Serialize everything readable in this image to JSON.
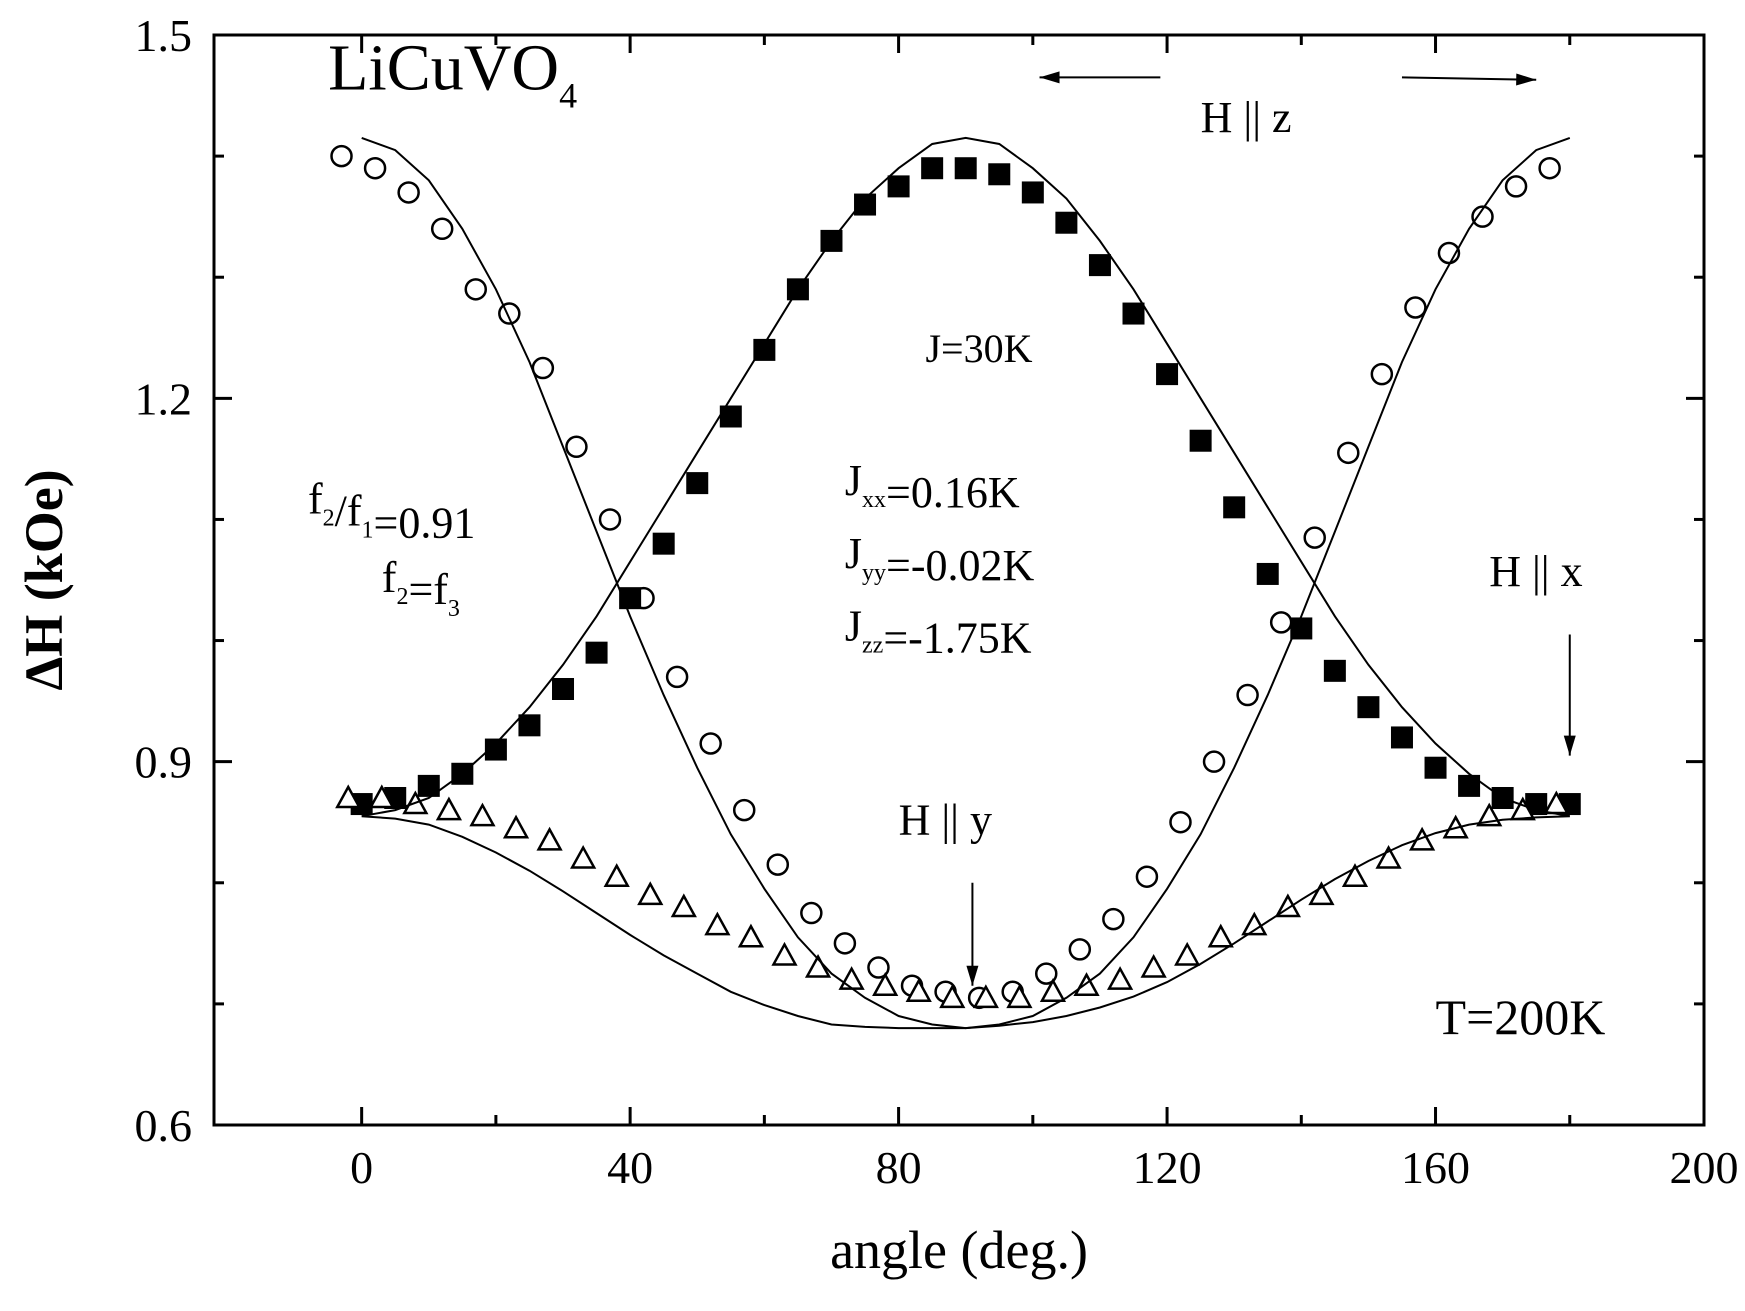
{
  "chart_data": {
    "type": "scatter",
    "title": "",
    "xlabel": "angle (deg.)",
    "ylabel": "ΔH (kOe)",
    "xlim": [
      -22,
      200
    ],
    "ylim": [
      0.6,
      1.5
    ],
    "x_ticks": [
      0,
      40,
      80,
      120,
      160,
      200
    ],
    "x_tick_labels": [
      "0",
      "40",
      "80",
      "120",
      "160",
      "200"
    ],
    "x_minor_ticks": [
      20,
      60,
      100,
      140,
      180
    ],
    "y_ticks": [
      0.6,
      0.9,
      1.2,
      1.5
    ],
    "y_tick_labels": [
      "0.6",
      "0.9",
      "1.2",
      "1.5"
    ],
    "y_minor_ticks": [
      0.7,
      0.8,
      1.0,
      1.1,
      1.3,
      1.4
    ],
    "grid": false,
    "legend": "none",
    "series": [
      {
        "marker": "circle-open",
        "x": [
          -3,
          2,
          7,
          12,
          17,
          22,
          27,
          32,
          37,
          42,
          47,
          52,
          57,
          62,
          67,
          72,
          77,
          82,
          87,
          92,
          97,
          102,
          107,
          112,
          117,
          122,
          127,
          132,
          137,
          142,
          147,
          152,
          157,
          162,
          167,
          172,
          177
        ],
        "y": [
          1.4,
          1.39,
          1.37,
          1.34,
          1.29,
          1.27,
          1.225,
          1.16,
          1.1,
          1.035,
          0.97,
          0.915,
          0.86,
          0.815,
          0.775,
          0.75,
          0.73,
          0.715,
          0.71,
          0.705,
          0.71,
          0.725,
          0.745,
          0.77,
          0.805,
          0.85,
          0.9,
          0.955,
          1.015,
          1.085,
          1.155,
          1.22,
          1.275,
          1.32,
          1.35,
          1.375,
          1.39
        ]
      },
      {
        "marker": "square-filled",
        "x": [
          0,
          5,
          10,
          15,
          20,
          25,
          30,
          35,
          40,
          45,
          50,
          55,
          60,
          65,
          70,
          75,
          80,
          85,
          90,
          95,
          100,
          105,
          110,
          115,
          120,
          125,
          130,
          135,
          140,
          145,
          150,
          155,
          160,
          165,
          170,
          175,
          180
        ],
        "y": [
          0.865,
          0.87,
          0.88,
          0.89,
          0.91,
          0.93,
          0.96,
          0.99,
          1.035,
          1.08,
          1.13,
          1.185,
          1.24,
          1.29,
          1.33,
          1.36,
          1.375,
          1.39,
          1.39,
          1.385,
          1.37,
          1.345,
          1.31,
          1.27,
          1.22,
          1.165,
          1.11,
          1.055,
          1.01,
          0.975,
          0.945,
          0.92,
          0.895,
          0.88,
          0.87,
          0.865,
          0.865
        ]
      },
      {
        "marker": "triangle-open",
        "x": [
          -2,
          3,
          8,
          13,
          18,
          23,
          28,
          33,
          38,
          43,
          48,
          53,
          58,
          63,
          68,
          73,
          78,
          83,
          88,
          93,
          98,
          103,
          108,
          113,
          118,
          123,
          128,
          133,
          138,
          143,
          148,
          153,
          158,
          163,
          168,
          173,
          178
        ],
        "y": [
          0.87,
          0.87,
          0.865,
          0.86,
          0.855,
          0.845,
          0.835,
          0.82,
          0.805,
          0.79,
          0.78,
          0.765,
          0.755,
          0.74,
          0.73,
          0.72,
          0.715,
          0.71,
          0.705,
          0.705,
          0.705,
          0.71,
          0.715,
          0.72,
          0.73,
          0.74,
          0.755,
          0.765,
          0.78,
          0.79,
          0.805,
          0.82,
          0.835,
          0.845,
          0.855,
          0.86,
          0.865
        ]
      },
      {
        "marker": "line",
        "x": [
          0,
          5,
          10,
          15,
          20,
          25,
          30,
          35,
          40,
          45,
          50,
          55,
          60,
          65,
          70,
          75,
          80,
          85,
          90,
          95,
          100,
          105,
          110,
          115,
          120,
          125,
          130,
          135,
          140,
          145,
          150,
          155,
          160,
          165,
          170,
          175,
          180
        ],
        "y": [
          0.855,
          0.86,
          0.87,
          0.89,
          0.915,
          0.945,
          0.98,
          1.02,
          1.065,
          1.11,
          1.155,
          1.2,
          1.245,
          1.29,
          1.33,
          1.365,
          1.39,
          1.41,
          1.415,
          1.41,
          1.39,
          1.365,
          1.33,
          1.29,
          1.245,
          1.2,
          1.155,
          1.11,
          1.065,
          1.02,
          0.98,
          0.945,
          0.915,
          0.89,
          0.87,
          0.86,
          0.855
        ]
      },
      {
        "marker": "line",
        "x": [
          0,
          5,
          10,
          15,
          20,
          25,
          30,
          35,
          40,
          45,
          50,
          55,
          60,
          65,
          70,
          75,
          80,
          85,
          90,
          95,
          100,
          105,
          110,
          115,
          120,
          125,
          130,
          135,
          140,
          145,
          150,
          155,
          160,
          165,
          170,
          175,
          180
        ],
        "y": [
          1.415,
          1.405,
          1.38,
          1.34,
          1.29,
          1.23,
          1.16,
          1.09,
          1.02,
          0.955,
          0.895,
          0.84,
          0.795,
          0.755,
          0.725,
          0.705,
          0.69,
          0.683,
          0.68,
          0.683,
          0.69,
          0.705,
          0.725,
          0.755,
          0.795,
          0.84,
          0.895,
          0.955,
          1.02,
          1.09,
          1.16,
          1.23,
          1.29,
          1.34,
          1.38,
          1.405,
          1.415
        ]
      },
      {
        "marker": "line",
        "x": [
          0,
          5,
          10,
          15,
          20,
          25,
          30,
          35,
          40,
          45,
          50,
          55,
          60,
          65,
          70,
          75,
          80,
          85,
          90,
          95,
          100,
          105,
          110,
          115,
          120,
          125,
          130,
          135,
          140,
          145,
          150,
          155,
          160,
          165,
          170,
          175,
          180
        ],
        "y": [
          0.855,
          0.853,
          0.848,
          0.838,
          0.825,
          0.81,
          0.793,
          0.775,
          0.757,
          0.74,
          0.725,
          0.71,
          0.699,
          0.69,
          0.683,
          0.681,
          0.68,
          0.68,
          0.68,
          0.682,
          0.685,
          0.69,
          0.697,
          0.706,
          0.718,
          0.733,
          0.75,
          0.768,
          0.786,
          0.803,
          0.818,
          0.831,
          0.841,
          0.848,
          0.852,
          0.854,
          0.855
        ]
      }
    ],
    "annotations": [
      {
        "text": "LiCuVO",
        "sub": "4",
        "x": -5,
        "y": 1.455
      },
      {
        "text": "H || z",
        "x": 125,
        "y": 1.42
      },
      {
        "text": "J=30K",
        "x": 84,
        "y": 1.23
      },
      {
        "text": "f",
        "sub": "2",
        "text2": "/f",
        "sub2": "1",
        "text3": "=0.91",
        "x": -8,
        "y": 1.105
      },
      {
        "text": "f",
        "sub": "2",
        "text2": "=f",
        "sub2": "3",
        "x": 3,
        "y": 1.04
      },
      {
        "text": "J",
        "sub": "xx",
        "text2": "=0.16K",
        "x": 72,
        "y": 1.12
      },
      {
        "text": "J",
        "sub": "yy",
        "text2": "=-0.02K",
        "x": 72,
        "y": 1.06
      },
      {
        "text": "J",
        "sub": "zz",
        "text2": "=-1.75K",
        "x": 72,
        "y": 1.0
      },
      {
        "text": "H || x",
        "x": 168,
        "y": 1.045
      },
      {
        "text": "H || y",
        "x": 80,
        "y": 0.84
      },
      {
        "text": "T=200K",
        "x": 160,
        "y": 0.675
      }
    ]
  }
}
